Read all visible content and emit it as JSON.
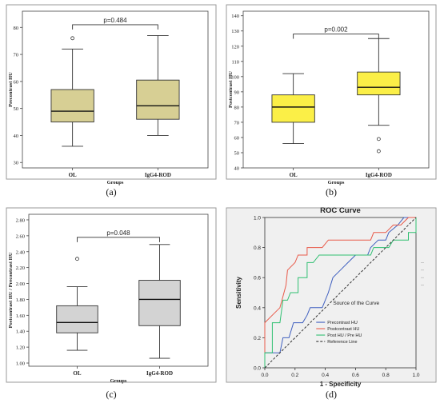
{
  "panels": [
    {
      "type": "box",
      "panel_label": "(a)",
      "ylabel": "Precontrast HU",
      "xlabel": "Groups",
      "ylim": [
        28,
        86
      ],
      "yticks": [
        30,
        40,
        50,
        60,
        70,
        80
      ],
      "ytick_labels": [
        "30",
        "40",
        "50",
        "60",
        "70",
        "80"
      ],
      "categories": [
        "OL",
        "IgG4-ROD"
      ],
      "fill": "#d7cf94",
      "boxes": [
        {
          "min": 36,
          "q1": 45,
          "median": 49,
          "q3": 57,
          "max": 72,
          "outliers": [
            76
          ]
        },
        {
          "min": 40,
          "q1": 46,
          "median": 51,
          "q3": 60.5,
          "max": 77,
          "outliers": []
        }
      ],
      "annotation": "p=0.484",
      "bracket_y": 81
    },
    {
      "type": "box",
      "panel_label": "(b)",
      "ylabel": "Postcontrast HU",
      "xlabel": "Groups",
      "ylim": [
        40,
        143
      ],
      "yticks": [
        40,
        50,
        60,
        70,
        80,
        90,
        100,
        110,
        120,
        130,
        140
      ],
      "ytick_labels": [
        "40",
        "50",
        "60",
        "70",
        "80",
        "90",
        "100",
        "110",
        "120",
        "130",
        "140"
      ],
      "categories": [
        "OL",
        "IgG4-ROD"
      ],
      "fill": "#fbef47",
      "boxes": [
        {
          "min": 56,
          "q1": 70,
          "median": 80,
          "q3": 88,
          "max": 102,
          "outliers": []
        },
        {
          "min": 68,
          "q1": 88,
          "median": 93,
          "q3": 103,
          "max": 125,
          "outliers": [
            59,
            51
          ]
        }
      ],
      "annotation": "p=0.002",
      "bracket_y": 128
    },
    {
      "type": "box",
      "panel_label": "(c)",
      "ylabel": "Postcontrast HU / Precontrast HU",
      "xlabel": "Groups",
      "ylim": [
        0.96,
        2.87
      ],
      "yticks": [
        1.0,
        1.2,
        1.4,
        1.6,
        1.8,
        2.0,
        2.2,
        2.4,
        2.6,
        2.8
      ],
      "ytick_labels": [
        "1.00",
        "1.20",
        "1.40",
        "1.60",
        "1.80",
        "2.00",
        "2.20",
        "2.40",
        "2.60",
        "2.80"
      ],
      "categories": [
        "OL",
        "IgG4-ROD"
      ],
      "fill": "#d3d3d3",
      "boxes": [
        {
          "min": 1.16,
          "q1": 1.38,
          "median": 1.51,
          "q3": 1.72,
          "max": 1.96,
          "outliers": [
            2.31
          ]
        },
        {
          "min": 1.06,
          "q1": 1.47,
          "median": 1.8,
          "q3": 2.04,
          "max": 2.49,
          "outliers": []
        }
      ],
      "annotation": "p=0.048",
      "bracket_y": 2.58
    },
    {
      "type": "line",
      "panel_label": "(d)",
      "title": "ROC Curve",
      "xlabel": "1 - Specificity",
      "ylabel": "Sensitivity",
      "xlim": [
        0,
        1
      ],
      "ylim": [
        0,
        1
      ],
      "xticks": [
        0,
        0.2,
        0.4,
        0.6,
        0.8,
        1.0
      ],
      "xtick_labels": [
        "0.0",
        "0.2",
        "0.4",
        "0.6",
        "0.8",
        "1.0"
      ],
      "yticks": [
        0,
        0.2,
        0.4,
        0.6,
        0.8,
        1.0
      ],
      "ytick_labels": [
        "0.0",
        "0.2",
        "0.4",
        "0.6",
        "0.8",
        "1.0"
      ],
      "legend_title": "Source of the Curve",
      "legend_position": "lower-right",
      "series": [
        {
          "name": "Precontrast HU",
          "color": "#3f5fbf",
          "dash": false,
          "points": [
            [
              0,
              0
            ],
            [
              0,
              0.1
            ],
            [
              0.05,
              0.1
            ],
            [
              0.1,
              0.1
            ],
            [
              0.12,
              0.2
            ],
            [
              0.16,
              0.2
            ],
            [
              0.19,
              0.3
            ],
            [
              0.25,
              0.3
            ],
            [
              0.28,
              0.35
            ],
            [
              0.3,
              0.4
            ],
            [
              0.38,
              0.4
            ],
            [
              0.42,
              0.5
            ],
            [
              0.45,
              0.6
            ],
            [
              0.5,
              0.65
            ],
            [
              0.55,
              0.7
            ],
            [
              0.6,
              0.75
            ],
            [
              0.68,
              0.75
            ],
            [
              0.7,
              0.8
            ],
            [
              0.75,
              0.85
            ],
            [
              0.8,
              0.85
            ],
            [
              0.82,
              0.9
            ],
            [
              0.88,
              0.95
            ],
            [
              0.92,
              1.0
            ],
            [
              1.0,
              1.0
            ]
          ]
        },
        {
          "name": "Postcontrast HU",
          "color": "#e85a4a",
          "dash": false,
          "points": [
            [
              0,
              0
            ],
            [
              0,
              0.3
            ],
            [
              0.05,
              0.35
            ],
            [
              0.1,
              0.4
            ],
            [
              0.14,
              0.55
            ],
            [
              0.15,
              0.65
            ],
            [
              0.2,
              0.7
            ],
            [
              0.22,
              0.75
            ],
            [
              0.28,
              0.75
            ],
            [
              0.28,
              0.8
            ],
            [
              0.38,
              0.8
            ],
            [
              0.42,
              0.85
            ],
            [
              0.7,
              0.85
            ],
            [
              0.72,
              0.9
            ],
            [
              0.8,
              0.9
            ],
            [
              0.85,
              0.95
            ],
            [
              0.9,
              0.95
            ],
            [
              0.95,
              1.0
            ],
            [
              1.0,
              1.0
            ]
          ]
        },
        {
          "name": "Post HU / Pre HU",
          "color": "#2fbf71",
          "dash": false,
          "points": [
            [
              0,
              0
            ],
            [
              0,
              0.1
            ],
            [
              0.05,
              0.1
            ],
            [
              0.05,
              0.3
            ],
            [
              0.1,
              0.3
            ],
            [
              0.12,
              0.45
            ],
            [
              0.15,
              0.45
            ],
            [
              0.17,
              0.5
            ],
            [
              0.22,
              0.5
            ],
            [
              0.22,
              0.6
            ],
            [
              0.28,
              0.6
            ],
            [
              0.28,
              0.7
            ],
            [
              0.32,
              0.7
            ],
            [
              0.36,
              0.75
            ],
            [
              0.7,
              0.75
            ],
            [
              0.72,
              0.8
            ],
            [
              0.82,
              0.8
            ],
            [
              0.85,
              0.85
            ],
            [
              0.95,
              0.85
            ],
            [
              0.95,
              0.9
            ],
            [
              1.0,
              0.9
            ],
            [
              1.0,
              1.0
            ]
          ]
        },
        {
          "name": "Reference Line",
          "color": "#333333",
          "dash": true,
          "points": [
            [
              0,
              0
            ],
            [
              1,
              1
            ]
          ]
        }
      ]
    }
  ]
}
